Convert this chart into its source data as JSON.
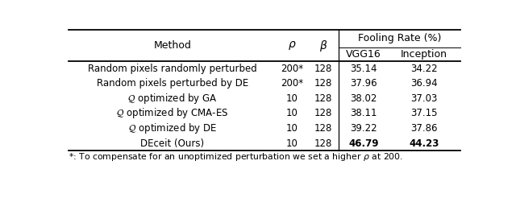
{
  "col_headers_top": [
    "Method",
    "ρ",
    "β",
    "Fooling Rate (%)"
  ],
  "col_headers_bot": [
    "",
    "",
    "",
    "VGG16",
    "Inception"
  ],
  "rows": [
    [
      "Random pixels randomly perturbed",
      "200*",
      "128",
      "35.14",
      "34.22",
      false
    ],
    [
      "Random pixels perturbed by DE",
      "200*",
      "128",
      "37.96",
      "36.94",
      false
    ],
    [
      "Ρ optimized by GA",
      "10",
      "128",
      "38.02",
      "37.03",
      false
    ],
    [
      "Ρ optimized by CMA-ES",
      "10",
      "128",
      "38.11",
      "37.15",
      false
    ],
    [
      "Ρ optimized by DE",
      "10",
      "128",
      "39.22",
      "37.86",
      false
    ],
    [
      "DEceit (Ours)",
      "10",
      "128",
      "46.79",
      "44.23",
      true
    ]
  ],
  "italic_method_rows": [
    2,
    3,
    4
  ],
  "footnote": "*: To compensate for an unoptimized perturbation we set a higher ρ at 200.",
  "bg_color": "#ffffff",
  "text_color": "#000000"
}
